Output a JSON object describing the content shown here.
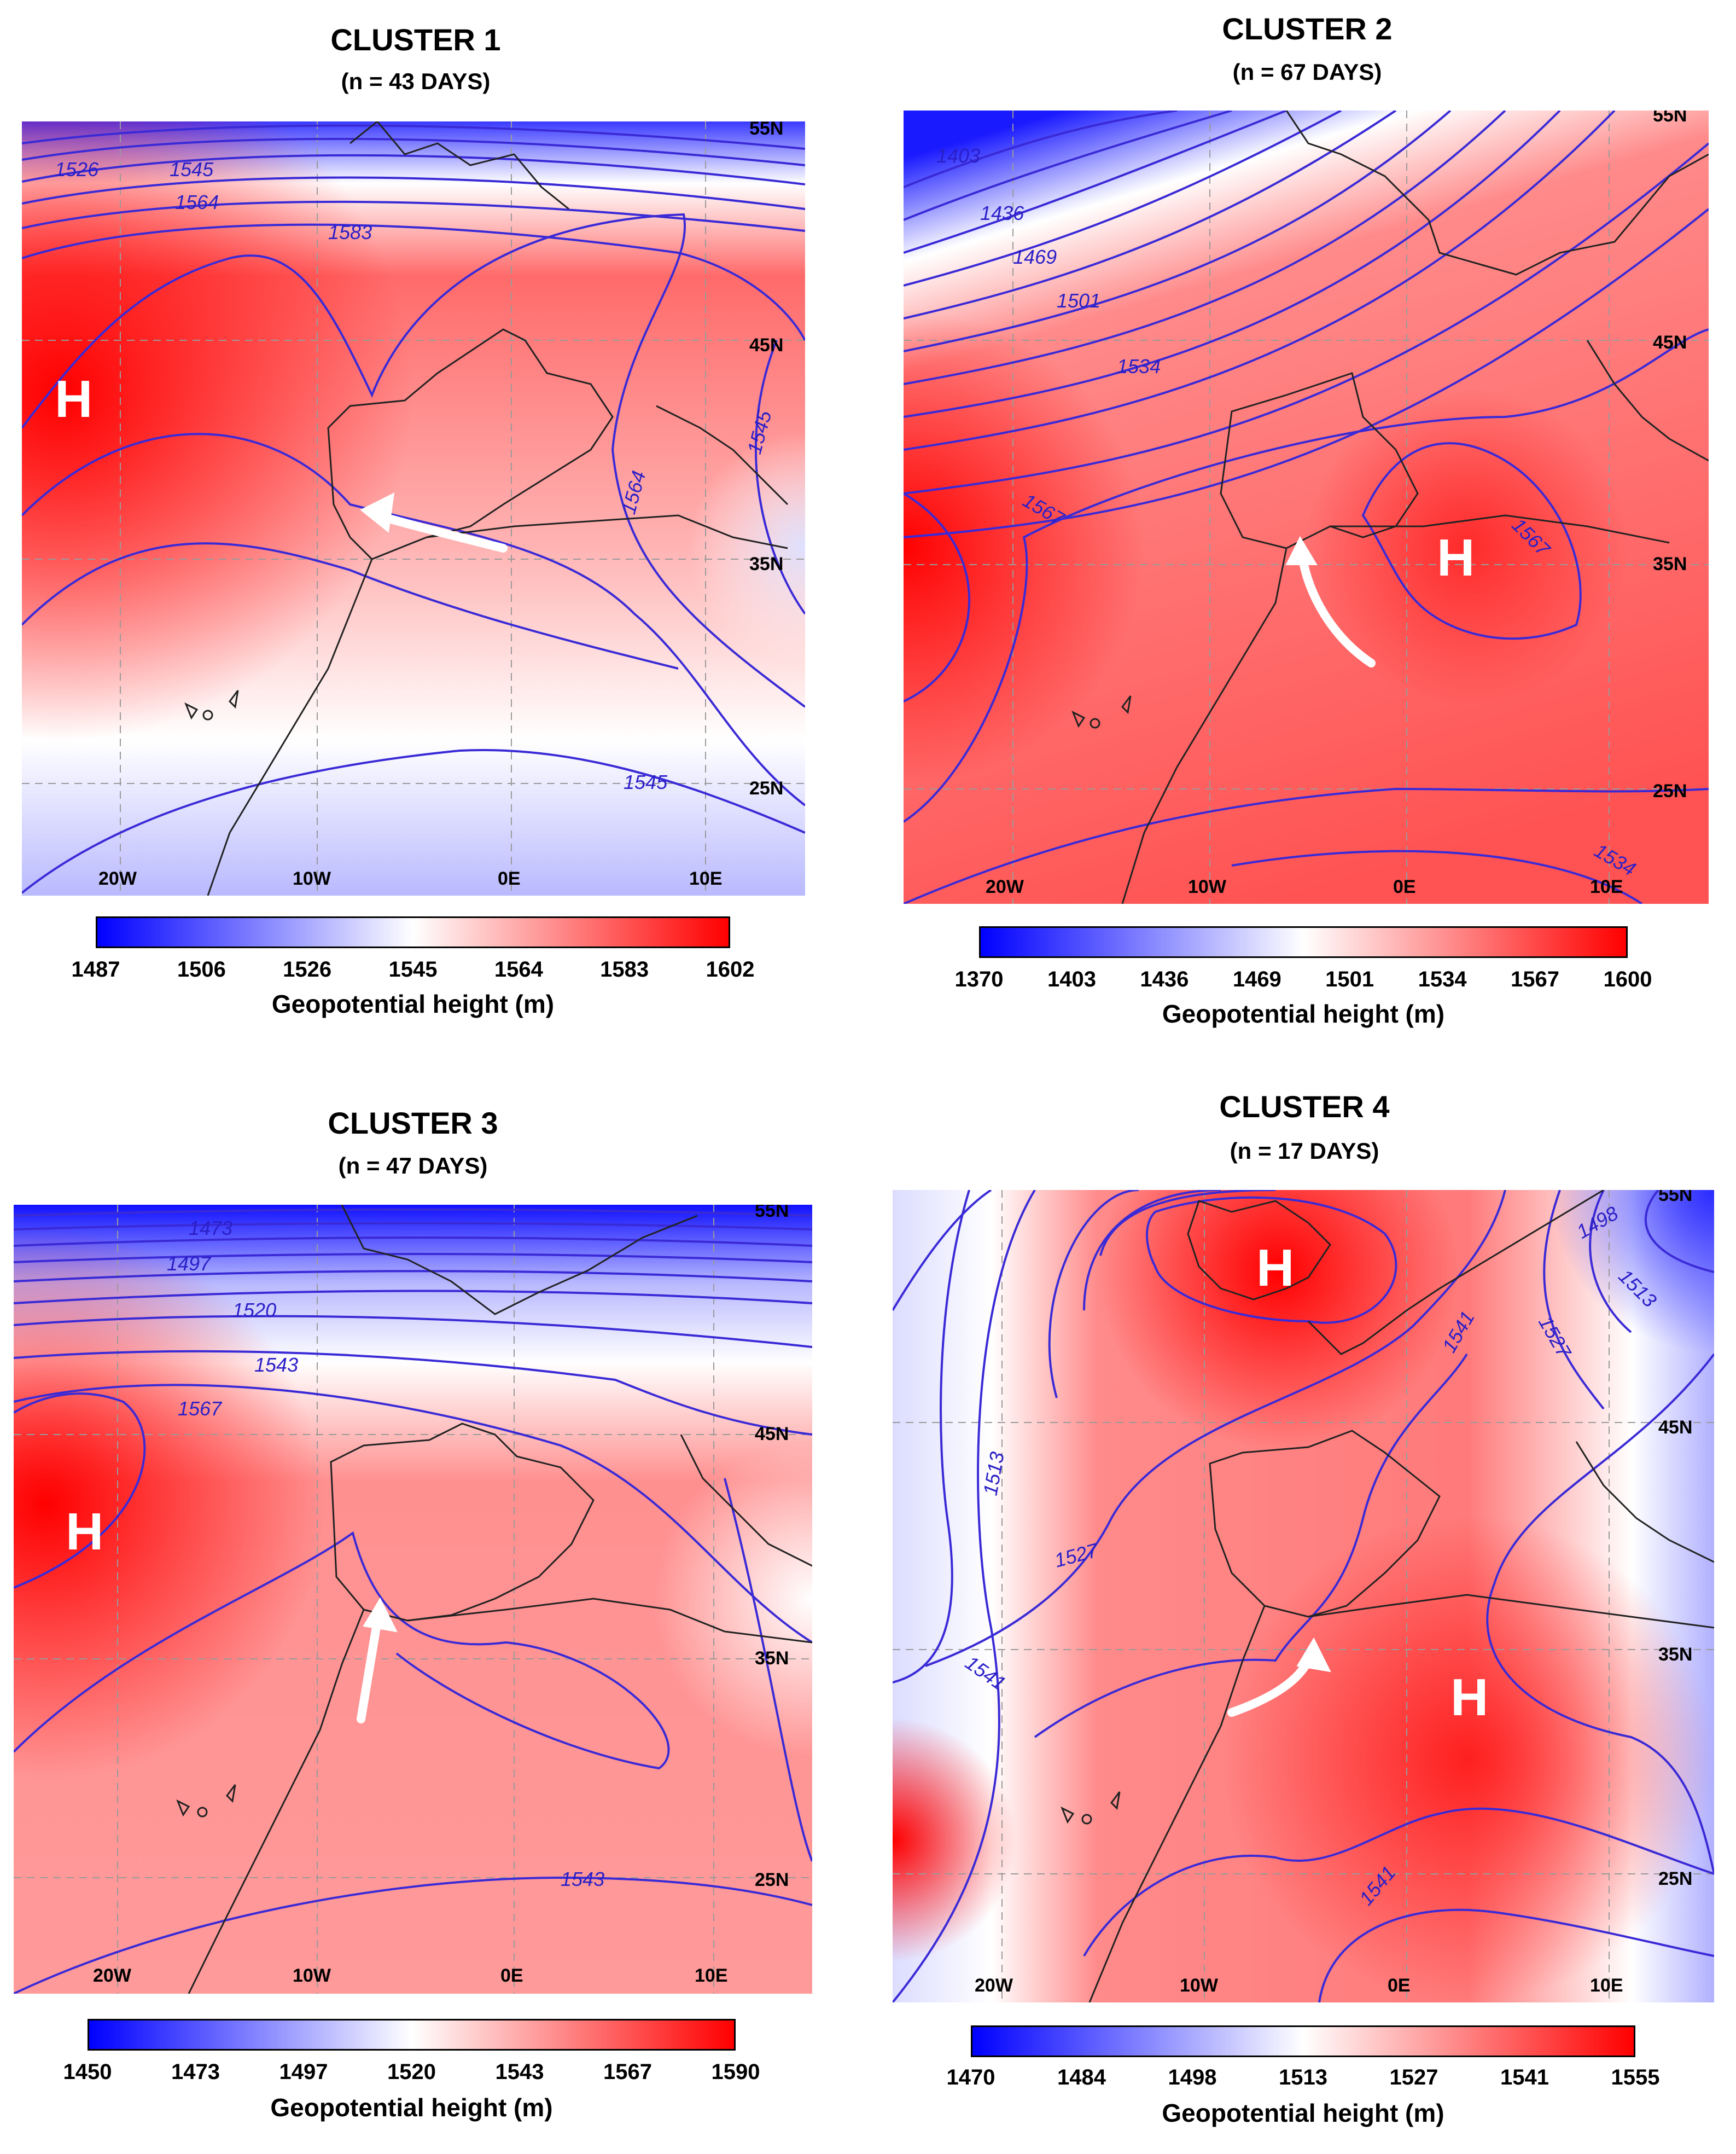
{
  "colorbar_title": "Geopotential height (m)",
  "colors": {
    "low": "#0000ff",
    "mid": "#ffffff",
    "high": "#ff0000",
    "contour": "#3a2ad6",
    "coast": "#222222",
    "arrow": "#ffffff"
  },
  "axis_labels": {
    "lon": [
      "20W",
      "10W",
      "0E",
      "10E"
    ],
    "lat": [
      "55N",
      "45N",
      "35N",
      "25N"
    ]
  },
  "clusters": [
    {
      "title": "CLUSTER  1",
      "subtitle": "(n = 43 DAYS)",
      "colorbar_ticks": [
        "1487",
        "1506",
        "1526",
        "1545",
        "1564",
        "1583",
        "1602"
      ],
      "contour_labels": [
        "1526",
        "1545",
        "1564",
        "1583",
        "1564",
        "1545",
        "1545"
      ],
      "high_label": "H",
      "high_count": 1
    },
    {
      "title": "CLUSTER 2",
      "subtitle": "(n = 67 DAYS)",
      "colorbar_ticks": [
        "1370",
        "1403",
        "1436",
        "1469",
        "1501",
        "1534",
        "1567",
        "1600"
      ],
      "contour_labels": [
        "1403",
        "1436",
        "1469",
        "1501",
        "1534",
        "1567",
        "1567",
        "1534"
      ],
      "high_label": "H",
      "high_count": 1
    },
    {
      "title": "CLUSTER 3",
      "subtitle": "(n = 47 DAYS)",
      "colorbar_ticks": [
        "1450",
        "1473",
        "1497",
        "1520",
        "1543",
        "1567",
        "1590"
      ],
      "contour_labels": [
        "1473",
        "1497",
        "1520",
        "1543",
        "1567",
        "1543"
      ],
      "high_label": "H",
      "high_count": 1
    },
    {
      "title": "CLUSTER 4",
      "subtitle": "(n = 17 DAYS)",
      "colorbar_ticks": [
        "1470",
        "1484",
        "1498",
        "1513",
        "1527",
        "1541",
        "1555"
      ],
      "contour_labels": [
        "1498",
        "1513",
        "1513",
        "1527",
        "1527",
        "1541",
        "1541",
        "1541"
      ],
      "high_label": "H",
      "high_count": 2
    }
  ]
}
